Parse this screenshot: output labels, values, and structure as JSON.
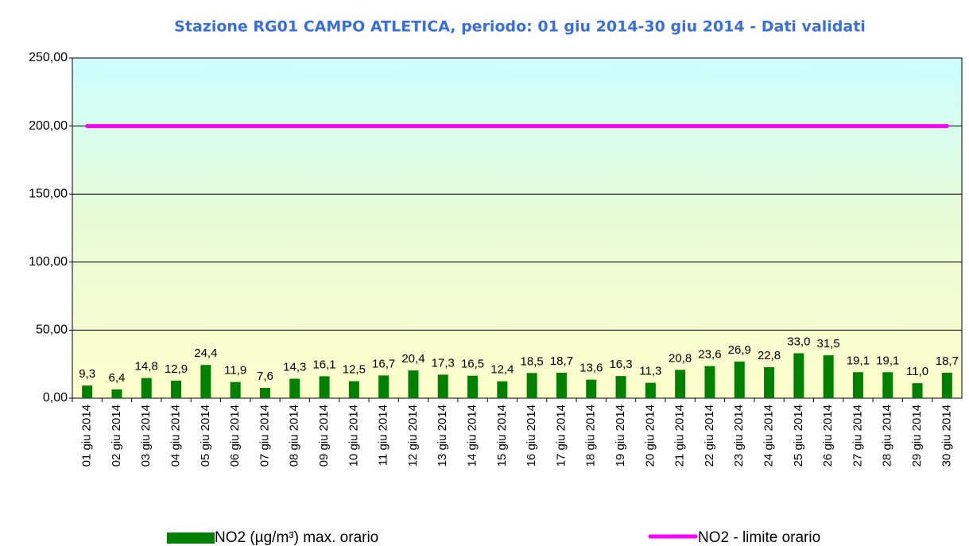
{
  "chart_data": {
    "type": "bar",
    "title": "Stazione RG01 CAMPO ATLETICA, periodo: 01 giu 2014-30 giu 2014 - Dati validati",
    "categories": [
      "01 giu 2014",
      "02 giu 2014",
      "03 giu 2014",
      "04 giu 2014",
      "05 giu 2014",
      "06 giu 2014",
      "07 giu 2014",
      "08 giu 2014",
      "09 giu 2014",
      "10 giu 2014",
      "11 giu 2014",
      "12 giu 2014",
      "13 giu 2014",
      "14 giu 2014",
      "15 giu 2014",
      "16 giu 2014",
      "17 giu 2014",
      "18 giu 2014",
      "19 giu 2014",
      "20 giu 2014",
      "21 giu 2014",
      "22 giu 2014",
      "23 giu 2014",
      "24 giu 2014",
      "25 giu 2014",
      "26 giu 2014",
      "27 giu 2014",
      "28 giu 2014",
      "29 giu 2014",
      "30 giu 2014"
    ],
    "series": [
      {
        "name": "NO2 (µg/m³) max. orario",
        "color": "#008000",
        "type": "bar",
        "values": [
          9.3,
          6.4,
          14.8,
          12.9,
          24.4,
          11.9,
          7.6,
          14.3,
          16.1,
          12.5,
          16.7,
          20.4,
          17.3,
          16.5,
          12.4,
          18.5,
          18.7,
          13.6,
          16.3,
          11.3,
          20.8,
          23.6,
          26.9,
          22.8,
          33.0,
          31.5,
          19.1,
          19.1,
          11.0,
          18.7
        ],
        "value_labels": [
          "9,3",
          "6,4",
          "14,8",
          "12,9",
          "24,4",
          "11,9",
          "7,6",
          "14,3",
          "16,1",
          "12,5",
          "16,7",
          "20,4",
          "17,3",
          "16,5",
          "12,4",
          "18,5",
          "18,7",
          "13,6",
          "16,3",
          "11,3",
          "20,8",
          "23,6",
          "26,9",
          "22,8",
          "33,0",
          "31,5",
          "19,1",
          "19,1",
          "11,0",
          "18,7"
        ]
      },
      {
        "name": "NO2 - limite orario",
        "color": "#ff00ff",
        "type": "line",
        "values": [
          200,
          200,
          200,
          200,
          200,
          200,
          200,
          200,
          200,
          200,
          200,
          200,
          200,
          200,
          200,
          200,
          200,
          200,
          200,
          200,
          200,
          200,
          200,
          200,
          200,
          200,
          200,
          200,
          200,
          200
        ]
      }
    ],
    "ylim": [
      0,
      250
    ],
    "yticks": [
      {
        "value": 0,
        "label": "0,00"
      },
      {
        "value": 50,
        "label": "50,00"
      },
      {
        "value": 100,
        "label": "100,00"
      },
      {
        "value": 150,
        "label": "150,00"
      },
      {
        "value": 200,
        "label": "200,00"
      },
      {
        "value": 250,
        "label": "250,00"
      }
    ],
    "grid": true
  }
}
